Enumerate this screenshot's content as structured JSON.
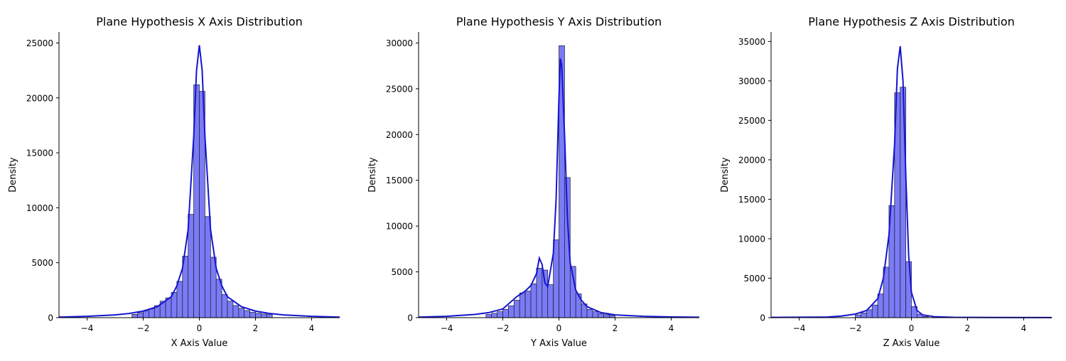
{
  "chart_data": [
    {
      "type": "histogram",
      "title": "Plane Hypothesis X Axis Distribution",
      "xlabel": "X Axis Value",
      "ylabel": "Density",
      "xlim": [
        -5,
        5
      ],
      "ylim": [
        0,
        26000
      ],
      "xticks": [
        -4,
        -2,
        0,
        2,
        4
      ],
      "yticks": [
        0,
        5000,
        10000,
        15000,
        20000,
        25000
      ],
      "bar_color": "#7b7bf5",
      "kde_color": "#1414d2",
      "bins": {
        "x0": [
          -2.4,
          -2.2,
          -2.0,
          -1.8,
          -1.6,
          -1.4,
          -1.2,
          -1.0,
          -0.8,
          -0.6,
          -0.4,
          -0.2,
          0.0,
          0.2,
          0.4,
          0.6,
          0.8,
          1.0,
          1.2,
          1.4,
          1.6,
          1.8,
          2.0,
          2.2,
          2.4
        ],
        "x1": [
          -2.2,
          -2.0,
          -1.8,
          -1.6,
          -1.4,
          -1.2,
          -1.0,
          -0.8,
          -0.6,
          -0.4,
          -0.2,
          0.0,
          0.2,
          0.4,
          0.6,
          0.8,
          1.0,
          1.2,
          1.4,
          1.6,
          1.8,
          2.0,
          2.2,
          2.4,
          2.6
        ],
        "values": [
          300,
          450,
          600,
          800,
          1100,
          1500,
          1800,
          2300,
          3300,
          5600,
          9400,
          21200,
          20600,
          9200,
          5500,
          3500,
          2100,
          1500,
          1100,
          850,
          650,
          500,
          400,
          330,
          280
        ]
      },
      "kde": {
        "x": [
          -5,
          -4,
          -3,
          -2.5,
          -2,
          -1.5,
          -1,
          -0.8,
          -0.6,
          -0.4,
          -0.2,
          -0.1,
          0,
          0.1,
          0.2,
          0.4,
          0.6,
          0.8,
          1,
          1.5,
          2,
          2.5,
          3,
          4,
          5
        ],
        "y": [
          50,
          120,
          250,
          380,
          600,
          1000,
          1900,
          2900,
          4500,
          8000,
          16500,
          22500,
          24800,
          22500,
          16500,
          8000,
          4500,
          2900,
          1900,
          1000,
          600,
          380,
          250,
          120,
          50
        ]
      }
    },
    {
      "type": "histogram",
      "title": "Plane Hypothesis Y Axis Distribution",
      "xlabel": "Y Axis Value",
      "ylabel": "Density",
      "xlim": [
        -5,
        5
      ],
      "ylim": [
        0,
        31200
      ],
      "xticks": [
        -4,
        -2,
        0,
        2,
        4
      ],
      "yticks": [
        0,
        5000,
        10000,
        15000,
        20000,
        25000,
        30000
      ],
      "bar_color": "#7b7bf5",
      "kde_color": "#1414d2",
      "bins": {
        "x0": [
          -2.6,
          -2.4,
          -2.2,
          -2.0,
          -1.8,
          -1.6,
          -1.4,
          -1.2,
          -1.0,
          -0.8,
          -0.6,
          -0.4,
          -0.2,
          0.0,
          0.2,
          0.4,
          0.6,
          0.8,
          1.0,
          1.2,
          1.4,
          1.6,
          1.8
        ],
        "x1": [
          -2.4,
          -2.2,
          -2.0,
          -1.8,
          -1.6,
          -1.4,
          -1.2,
          -1.0,
          -0.8,
          -0.6,
          -0.4,
          -0.2,
          0.0,
          0.2,
          0.4,
          0.6,
          0.8,
          1.0,
          1.2,
          1.4,
          1.6,
          1.8,
          2.0
        ],
        "values": [
          350,
          480,
          650,
          900,
          1300,
          1900,
          2700,
          2900,
          3700,
          5400,
          5200,
          3600,
          8500,
          29700,
          15300,
          5600,
          2600,
          1500,
          900,
          650,
          450,
          320,
          250
        ]
      },
      "kde": {
        "x": [
          -5,
          -4,
          -3,
          -2.5,
          -2,
          -1.5,
          -1.2,
          -1,
          -0.8,
          -0.7,
          -0.6,
          -0.5,
          -0.4,
          -0.2,
          -0.1,
          0,
          0.05,
          0.1,
          0.2,
          0.3,
          0.4,
          0.6,
          0.8,
          1,
          1.5,
          2,
          3,
          4,
          5
        ],
        "y": [
          60,
          150,
          350,
          550,
          950,
          2300,
          2900,
          3500,
          4800,
          6500,
          5800,
          3800,
          3400,
          7000,
          13000,
          24000,
          28300,
          27500,
          20000,
          11000,
          6000,
          3000,
          1900,
          1200,
          550,
          300,
          150,
          80,
          50
        ]
      }
    },
    {
      "type": "histogram",
      "title": "Plane Hypothesis Z Axis Distribution",
      "xlabel": "Z Axis Value",
      "ylabel": "Density",
      "xlim": [
        -5,
        5
      ],
      "ylim": [
        0,
        36200
      ],
      "xticks": [
        -4,
        -2,
        0,
        2,
        4
      ],
      "yticks": [
        0,
        5000,
        10000,
        15000,
        20000,
        25000,
        30000,
        35000
      ],
      "bar_color": "#7b7bf5",
      "kde_color": "#1414d2",
      "bins": {
        "x0": [
          -2.0,
          -1.8,
          -1.6,
          -1.4,
          -1.2,
          -1.0,
          -0.8,
          -0.6,
          -0.4,
          -0.2,
          0.0,
          0.2,
          0.4
        ],
        "x1": [
          -1.8,
          -1.6,
          -1.4,
          -1.2,
          -1.0,
          -0.8,
          -0.6,
          -0.4,
          -0.2,
          0.0,
          0.2,
          0.4,
          0.6
        ],
        "values": [
          350,
          600,
          1000,
          1600,
          3000,
          6400,
          14200,
          28500,
          29200,
          7100,
          1400,
          450,
          150
        ]
      },
      "kde": {
        "x": [
          -5,
          -3,
          -2.5,
          -2,
          -1.6,
          -1.2,
          -1,
          -0.8,
          -0.6,
          -0.5,
          -0.4,
          -0.3,
          -0.2,
          -0.1,
          0,
          0.2,
          0.4,
          0.8,
          1.5,
          3,
          5
        ],
        "y": [
          30,
          80,
          200,
          450,
          900,
          2400,
          5000,
          10500,
          22000,
          31500,
          34400,
          30000,
          18000,
          8000,
          3200,
          900,
          350,
          120,
          50,
          20,
          10
        ]
      }
    }
  ]
}
